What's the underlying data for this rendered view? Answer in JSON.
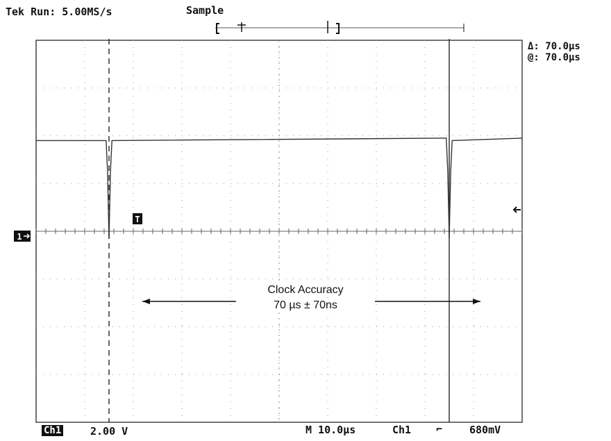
{
  "header": {
    "status": "Tek Run: 5.00MS/s",
    "mode": "Sample"
  },
  "cursors": {
    "delta": "Δ: 70.0μs",
    "at": "@: 70.0μs"
  },
  "footer": {
    "channel": "Ch1",
    "volts_per_div": "2.00 V",
    "timebase": "M 10.0μs",
    "trigger_source": "Ch1",
    "trigger_slope": "⌐",
    "trigger_level": "680mV"
  },
  "markers": {
    "channel_ground": "1",
    "trigger_t": "T"
  },
  "annotation": {
    "line1": "Clock Accuracy",
    "line2": "70 µs ± 70ns"
  },
  "chart_data": {
    "type": "line",
    "title": "",
    "xlabel": "",
    "ylabel": "",
    "x_units": "µs",
    "y_units": "V",
    "xlim": [
      -15,
      85
    ],
    "ylim": [
      -8,
      8
    ],
    "grid": true,
    "series": [
      {
        "x": [
          -15,
          -0.6,
          -0.3,
          0,
          0.3,
          0.6,
          69.4,
          69.7,
          70,
          70.3,
          70.6,
          85
        ],
        "values": [
          3.8,
          3.8,
          2.5,
          -0.3,
          2.5,
          3.8,
          3.9,
          2.5,
          -0.3,
          2.5,
          3.8,
          3.9
        ]
      }
    ],
    "cursors_x": [
      0,
      70
    ],
    "trigger_level": 0.68,
    "colors": {
      "trace": "#333333",
      "grid": "#999999",
      "cursor": "#333333"
    }
  }
}
